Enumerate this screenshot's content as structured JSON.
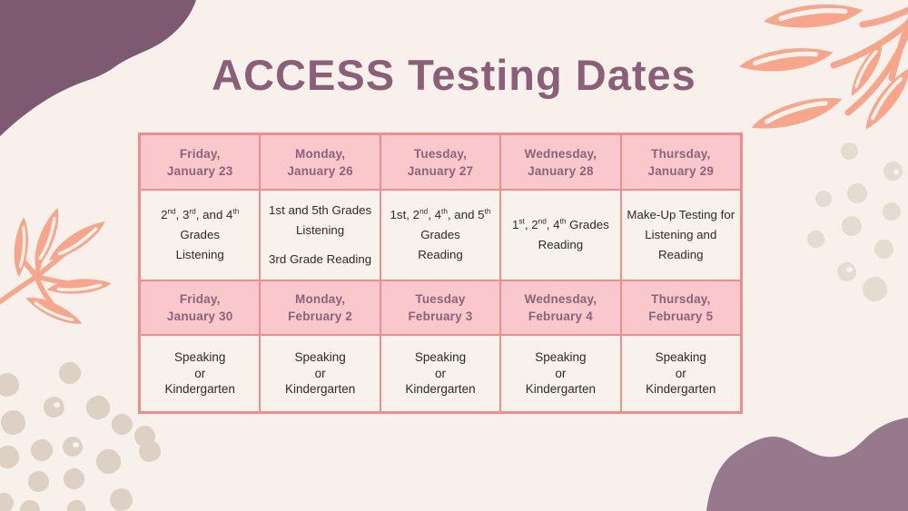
{
  "title": {
    "text": "ACCESS Testing Dates"
  },
  "colors": {
    "page_bg": "#f8f1eb",
    "title": "#8a5f77",
    "table_border": "#ef8d8c",
    "header_bg": "#f9c8cc",
    "header_text": "#8c6378",
    "cell_bg": "#f7f2ec",
    "cell_text": "#2e2a27",
    "blob_dark": "#7d5a72",
    "blob_light": "#97798e",
    "leaf_coral": "#f7a68b",
    "dots_left": "#ddd1c5",
    "dots_right": "#e5dcd1"
  },
  "table": {
    "columns": 5,
    "rows": [
      {
        "type": "header",
        "cells": [
          "Friday,\nJanuary 23",
          "Monday,\nJanuary 26",
          "Tuesday,\nJanuary 27",
          "Wednesday,\nJanuary 28",
          "Thursday,\nJanuary 29"
        ]
      },
      {
        "type": "body",
        "cells": [
          "2^nd^, 3^rd^, and 4^th^\nGrades\nListening",
          "1st and 5th Grades\nListening\n\n3rd Grade Reading",
          "1st, 2^nd^, 4^th^, and 5^th^\nGrades\nReading",
          "1^st^, 2^nd^, 4^th^ Grades\nReading",
          "Make-Up Testing for\nListening and\nReading"
        ]
      },
      {
        "type": "header",
        "cells": [
          "Friday,\nJanuary 30",
          "Monday,\nFebruary 2",
          "Tuesday\nFebruary 3",
          "Wednesday,\nFebruary 4",
          "Thursday,\nFebruary 5"
        ]
      },
      {
        "type": "body",
        "cells": [
          "Speaking\nor\nKindergarten",
          "Speaking\nor\nKindergarten",
          "Speaking\nor\nKindergarten",
          "Speaking\nor\nKindergarten",
          "Speaking\nor\nKindergarten"
        ]
      }
    ]
  },
  "decorations": {
    "top_left_blob": "purple organic blob",
    "top_right_leaves": "coral leaf branch",
    "left_leaves": "coral leaf branch",
    "bottom_left_dots": "beige dot cluster",
    "right_dots": "beige dot cluster",
    "bottom_right_blob": "purple organic blob"
  }
}
